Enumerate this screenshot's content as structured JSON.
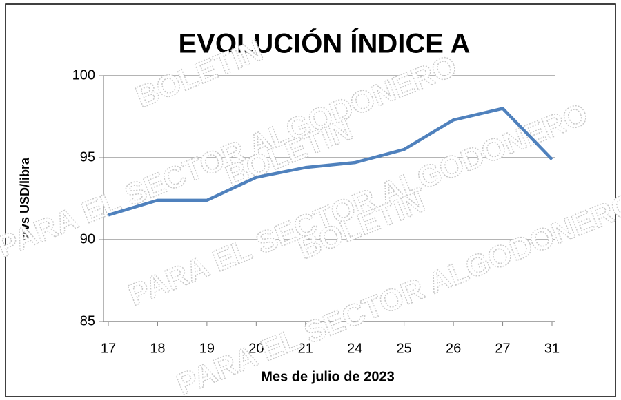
{
  "chart_data": {
    "type": "line",
    "title": "EVOLUCIÓN ÍNDICE A",
    "xlabel": "Mes de julio de 2023",
    "ylabel": "ctvs USD/libra",
    "categories": [
      "17",
      "18",
      "19",
      "20",
      "21",
      "24",
      "25",
      "26",
      "27",
      "31"
    ],
    "series": [
      {
        "name": "Índice A",
        "color": "#4f81bd",
        "values": [
          91.5,
          92.4,
          92.4,
          93.8,
          94.4,
          94.7,
          95.5,
          97.3,
          98.0,
          94.9
        ]
      }
    ],
    "ylim": [
      85,
      100
    ],
    "yticks": [
      85,
      90,
      95,
      100
    ],
    "grid": true,
    "watermark": [
      "BOLETIN",
      "PARA EL SECTOR ALGODONERO"
    ]
  }
}
